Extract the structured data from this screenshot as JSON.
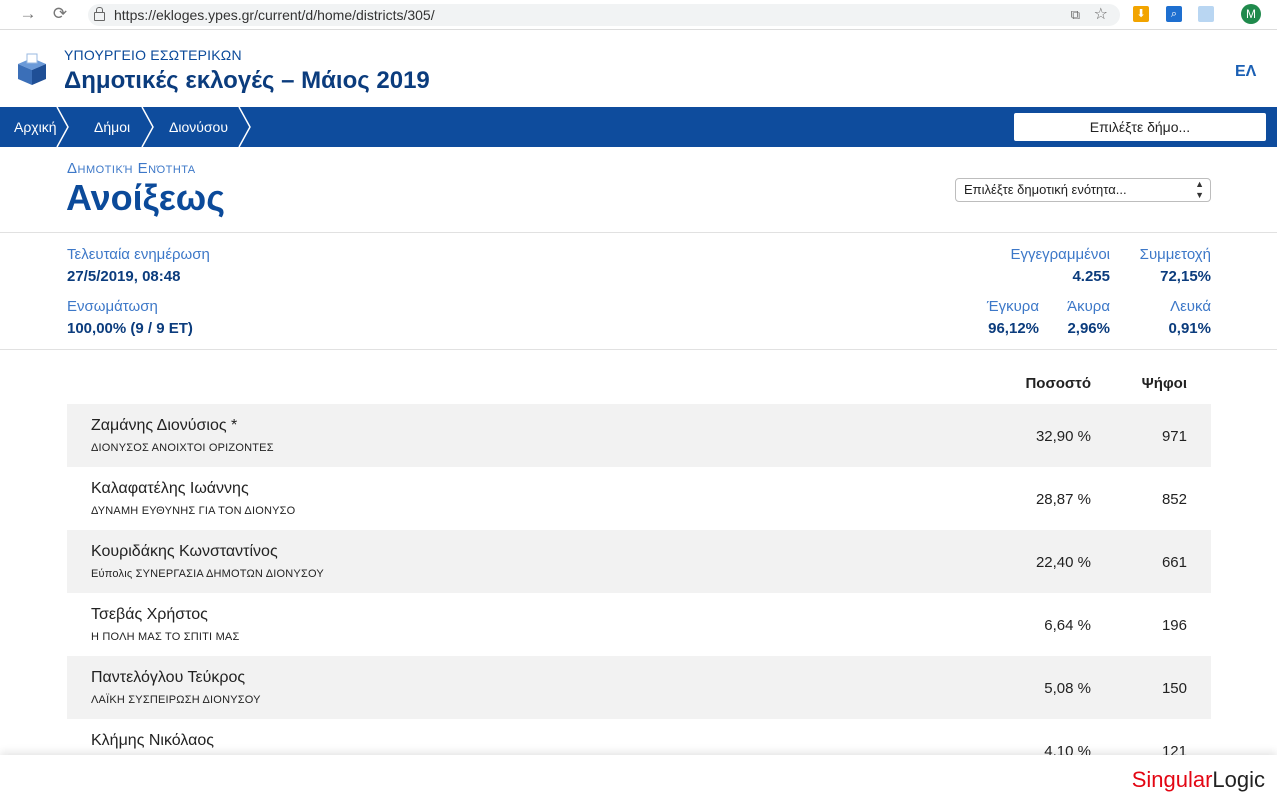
{
  "browser": {
    "url": "https://ekloges.ypes.gr/current/d/home/districts/305/",
    "avatar_letter": "M"
  },
  "header": {
    "ministry": "ΥΠΟΥΡΓΕΙΟ ΕΣΩΤΕΡΙΚΩΝ",
    "title": "Δημοτικές εκλογές – Μάιος 2019",
    "language": "ΕΛ"
  },
  "nav": {
    "breadcrumbs": [
      "Αρχική",
      "Δήμοι",
      "Διονύσου"
    ],
    "municipality_select": "Επιλέξτε δήμο..."
  },
  "district": {
    "label": "Δημοτική Ενότητα",
    "name": "Ανοίξεως",
    "select": "Επιλέξτε δημοτική ενότητα..."
  },
  "stats": {
    "last_update_label": "Τελευταία ενημέρωση",
    "last_update_value": "27/5/2019, 08:48",
    "integration_label": "Ενσωμάτωση",
    "integration_value": "100,00% (9 / 9 ΕΤ)",
    "registered_label": "Εγγεγραμμένοι",
    "registered_value": "4.255",
    "turnout_label": "Συμμετοχή",
    "turnout_value": "72,15%",
    "valid_label": "Έγκυρα",
    "valid_value": "96,12%",
    "invalid_label": "Άκυρα",
    "invalid_value": "2,96%",
    "blank_label": "Λευκά",
    "blank_value": "0,91%"
  },
  "results": {
    "header_percent": "Ποσοστό",
    "header_votes": "Ψήφοι",
    "rows": [
      {
        "candidate": "Ζαμάνης Διονύσιος *",
        "party": "ΔΙΟΝΥΣΟΣ ΑΝΟΙΧΤΟΙ ΟΡΙΖΟΝΤΕΣ",
        "percent": "32,90 %",
        "votes": "971"
      },
      {
        "candidate": "Καλαφατέλης Ιωάννης",
        "party": "ΔΥΝΑΜΗ ΕΥΘΥΝΗΣ ΓΙΑ ΤΟΝ ΔΙΟΝΥΣΟ",
        "percent": "28,87 %",
        "votes": "852"
      },
      {
        "candidate": "Κουριδάκης Κωνσταντίνος",
        "party": "Εύπολις ΣΥΝΕΡΓΑΣΙΑ ΔΗΜΟΤΩΝ ΔΙΟΝΥΣΟΥ",
        "percent": "22,40 %",
        "votes": "661"
      },
      {
        "candidate": "Τσεβάς Χρήστος",
        "party": "Η ΠΟΛΗ ΜΑΣ ΤΟ ΣΠΙΤΙ ΜΑΣ",
        "percent": "6,64 %",
        "votes": "196"
      },
      {
        "candidate": "Παντελόγλου Τεύκρος",
        "party": "ΛΑΪΚΗ ΣΥΣΠΕΙΡΩΣΗ ΔΙΟΝΥΣΟΥ",
        "percent": "5,08 %",
        "votes": "150"
      },
      {
        "candidate": "Κλήμης Νικόλαος",
        "party": "",
        "percent": "4,10 %",
        "votes": "121"
      }
    ]
  },
  "footer": {
    "brand_part1": "Singular",
    "brand_part2": "Logic"
  }
}
